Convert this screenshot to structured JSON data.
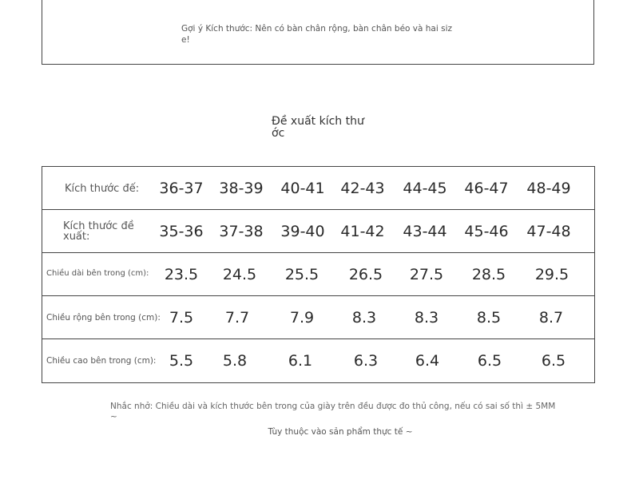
{
  "hint_box": {
    "text": "Gợi ý Kích thước: Nên có bàn chân rộng, bàn chân béo và hai size!"
  },
  "title": "Đề xuất kích thước",
  "table": {
    "rows": [
      {
        "label": "Kích thước đế:",
        "values": [
          "36-37",
          "38-39",
          "40-41",
          "42-43",
          "44-45",
          "46-47",
          "48-49"
        ]
      },
      {
        "label": "Kích thước đề xuất:",
        "values": [
          "35-36",
          "37-38",
          "39-40",
          "41-42",
          "43-44",
          "45-46",
          "47-48"
        ]
      },
      {
        "label": "Chiều dài bên trong (cm):",
        "values": [
          "23.5",
          "24.5",
          "25.5",
          "26.5",
          "27.5",
          "28.5",
          "29.5"
        ]
      },
      {
        "label": "Chiều rộng bên trong (cm):",
        "values": [
          "7.5",
          "7.7",
          "7.9",
          "8.3",
          "8.3",
          "8.5",
          "8.7"
        ]
      },
      {
        "label": "Chiều cao bên trong (cm):",
        "values": [
          "5.5",
          "5.8",
          "6.1",
          "6.3",
          "6.4",
          "6.5",
          "6.5"
        ]
      }
    ]
  },
  "note": "Nhắc nhở: Chiều dài và kích thước bên trong của giày trên đều được đo thủ công, nếu có sai số thì ± 5MM ~",
  "note2": "Tùy thuộc vào sản phẩm thực tế ~"
}
